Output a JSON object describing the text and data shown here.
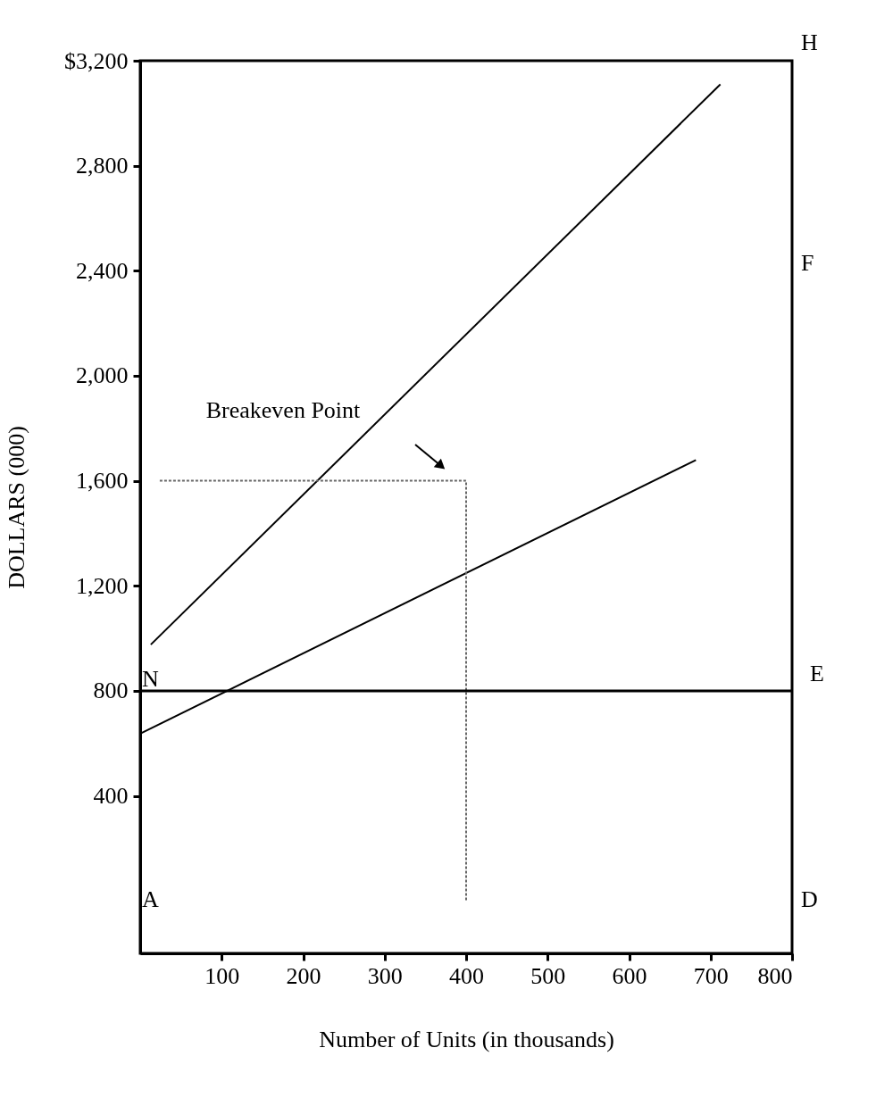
{
  "chart_data": {
    "type": "line",
    "xlabel": "Number of Units (in thousands)",
    "ylabel": "DOLLARS (000)",
    "xlim": [
      0,
      800
    ],
    "ylim": [
      -200,
      3200
    ],
    "xticks": [
      100,
      200,
      300,
      400,
      500,
      600,
      700,
      800
    ],
    "yticks": [
      400,
      {
        "value": 800,
        "label": "800"
      },
      {
        "value": 1200,
        "label": "1,200"
      },
      {
        "value": 1600,
        "label": "1,600"
      },
      {
        "value": 2000,
        "label": "2,000"
      },
      {
        "value": 2400,
        "label": "2,400"
      },
      {
        "value": 2800,
        "label": "2,800"
      },
      {
        "value": 3200,
        "label": "$3,200"
      }
    ],
    "series": [
      {
        "x": [
          13,
          712
        ],
        "values": [
          976,
          3110
        ],
        "color": "#000000",
        "line_style": "solid"
      },
      {
        "x": [
          0,
          682
        ],
        "values": [
          637,
          1679
        ],
        "color": "#000000",
        "line_style": "solid"
      },
      {
        "x": [
          24,
          400,
          400
        ],
        "values": [
          1600,
          1600,
          0
        ],
        "color": "#666666",
        "line_style": "dotted"
      }
    ],
    "ref_lines": [
      {
        "axis": "y",
        "value": 800,
        "color": "#000000",
        "label": "E"
      }
    ],
    "annotations": [
      "Breakeven Point",
      "H",
      "F",
      "D",
      "N",
      "A"
    ],
    "grid": false,
    "marker": "none"
  }
}
